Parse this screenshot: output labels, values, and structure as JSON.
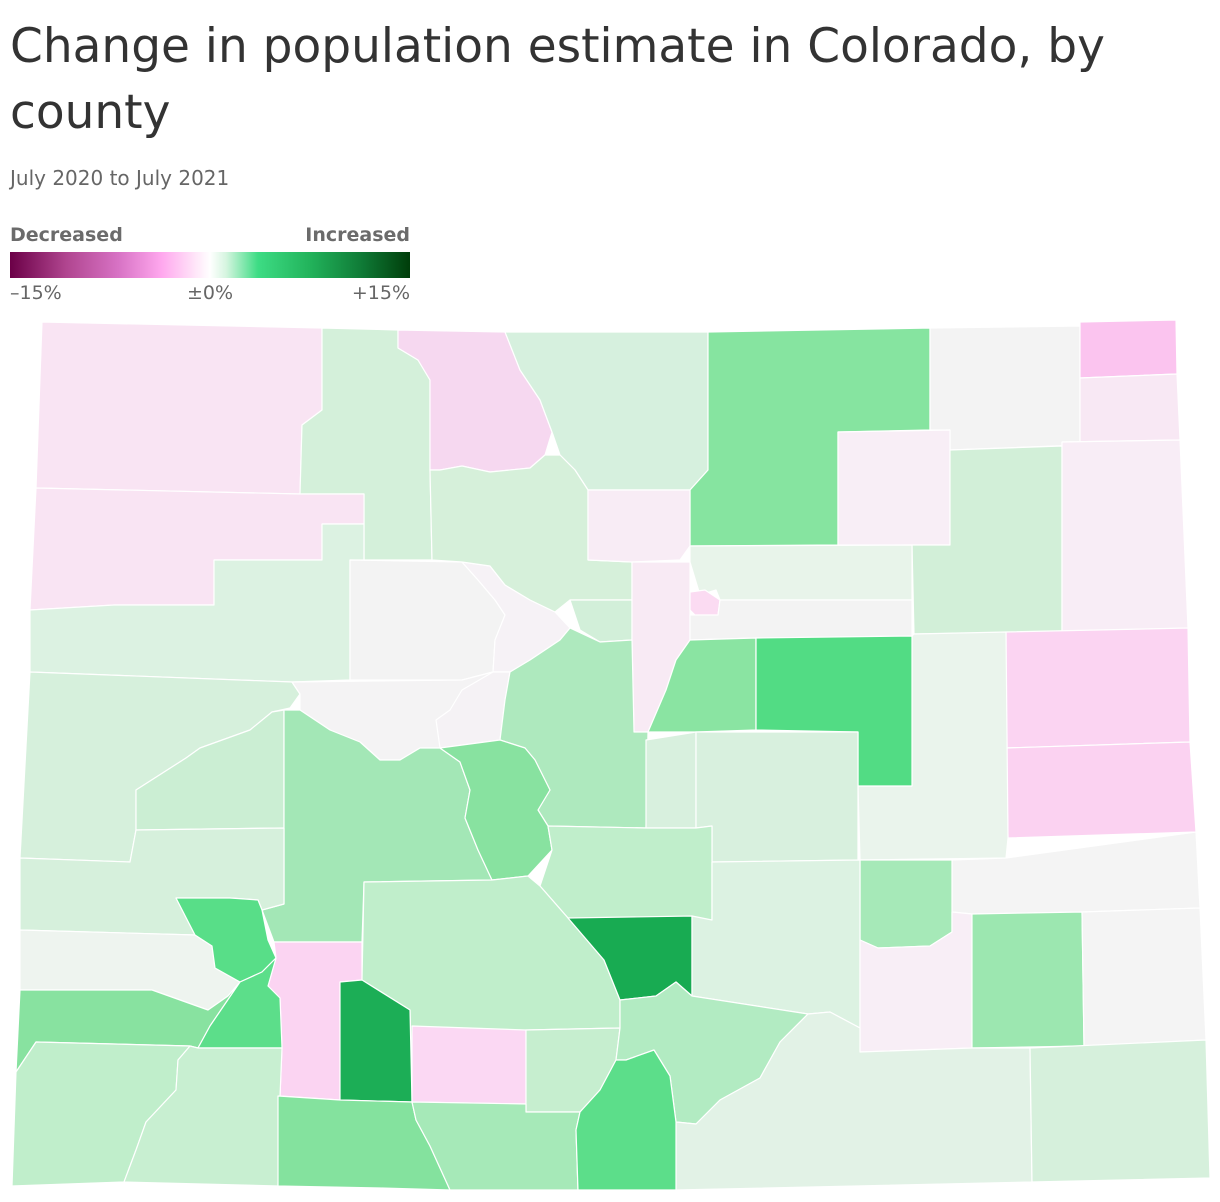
{
  "title": "Change in population estimate in Colorado, by county",
  "subtitle": "July 2020 to July 2021",
  "legend": {
    "low_label": "Decreased",
    "high_label": "Increased",
    "ticks": [
      "–15%",
      "±0%",
      "+15%"
    ],
    "colors": [
      "#6b0047",
      "#ffa8ee",
      "#ffffff",
      "#3ddc84",
      "#003d0a"
    ]
  },
  "map": {
    "regions": [
      {
        "id": "moffat",
        "color": "#f9e4f3"
      },
      {
        "id": "routt",
        "color": "#d4f0da"
      },
      {
        "id": "jackson",
        "color": "#f6d8f0"
      },
      {
        "id": "larimer",
        "color": "#d6f0de"
      },
      {
        "id": "weld",
        "color": "#86e4a0"
      },
      {
        "id": "logan",
        "color": "#f3f3f3"
      },
      {
        "id": "sedgwick",
        "color": "#fbc4ef"
      },
      {
        "id": "phillips",
        "color": "#f8e8f4"
      },
      {
        "id": "morgan",
        "color": "#f8eef6"
      },
      {
        "id": "washington",
        "color": "#d2efd8"
      },
      {
        "id": "yuma",
        "color": "#f8edf6"
      },
      {
        "id": "rio-blanco",
        "color": "#f9e4f3"
      },
      {
        "id": "garfield",
        "color": "#dcf2e2"
      },
      {
        "id": "eagle",
        "color": "#f3f3f3"
      },
      {
        "id": "summit",
        "color": "#f6f2f6"
      },
      {
        "id": "grand",
        "color": "#d6f0da"
      },
      {
        "id": "boulder",
        "color": "#f8ecf5"
      },
      {
        "id": "broomfield",
        "color": "#d2efd9"
      },
      {
        "id": "jefferson",
        "color": "#f8eaf4"
      },
      {
        "id": "adams",
        "color": "#e8f4ea"
      },
      {
        "id": "denver",
        "color": "#fbdbf2"
      },
      {
        "id": "arapahoe",
        "color": "#f3f3f3"
      },
      {
        "id": "kit-carson",
        "color": "#fbd4f2"
      },
      {
        "id": "mesa",
        "color": "#d6f0dc"
      },
      {
        "id": "delta",
        "color": "#cbeed3"
      },
      {
        "id": "pitkin",
        "color": "#f4f3f4"
      },
      {
        "id": "lake",
        "color": "#f5f2f5"
      },
      {
        "id": "park",
        "color": "#aee9be"
      },
      {
        "id": "douglas",
        "color": "#8ae4a2"
      },
      {
        "id": "elbert",
        "color": "#52dc84"
      },
      {
        "id": "lincoln",
        "color": "#eaf4ec"
      },
      {
        "id": "cheyenne",
        "color": "#fbd2f1"
      },
      {
        "id": "gunnison",
        "color": "#a3e7b6"
      },
      {
        "id": "chaffee",
        "color": "#88e2a0"
      },
      {
        "id": "teller",
        "color": "#d8f0de"
      },
      {
        "id": "el-paso",
        "color": "#d8f0de"
      },
      {
        "id": "montrose",
        "color": "#d6f0dc"
      },
      {
        "id": "fremont",
        "color": "#c0eecb"
      },
      {
        "id": "kiowa",
        "color": "#f4f4f4"
      },
      {
        "id": "san-miguel",
        "color": "#eef4ef"
      },
      {
        "id": "ouray",
        "color": "#58de88"
      },
      {
        "id": "hinsdale",
        "color": "#fbd4f2"
      },
      {
        "id": "saguache",
        "color": "#c0eecb"
      },
      {
        "id": "custer",
        "color": "#18ab52"
      },
      {
        "id": "pueblo",
        "color": "#dcf2e2"
      },
      {
        "id": "crowley",
        "color": "#a6e9b8"
      },
      {
        "id": "otero",
        "color": "#f8eef6"
      },
      {
        "id": "bent",
        "color": "#9ce7b0"
      },
      {
        "id": "prowers",
        "color": "#f4f4f4"
      },
      {
        "id": "dolores",
        "color": "#88e2a0"
      },
      {
        "id": "san-juan",
        "color": "#5cde8a"
      },
      {
        "id": "mineral",
        "color": "#1cae56"
      },
      {
        "id": "rio-grande",
        "color": "#fbd8f3"
      },
      {
        "id": "alamosa",
        "color": "#c6eecf"
      },
      {
        "id": "huerfano",
        "color": "#b2ebc2"
      },
      {
        "id": "montezuma",
        "color": "#c0eecb"
      },
      {
        "id": "la-plata",
        "color": "#c8efd1"
      },
      {
        "id": "archuleta",
        "color": "#84e29e"
      },
      {
        "id": "conejos",
        "color": "#a6e9b8"
      },
      {
        "id": "costilla",
        "color": "#5cde8a"
      },
      {
        "id": "las-animas",
        "color": "#e2f2e6"
      },
      {
        "id": "baca",
        "color": "#d6f0dc"
      }
    ]
  }
}
